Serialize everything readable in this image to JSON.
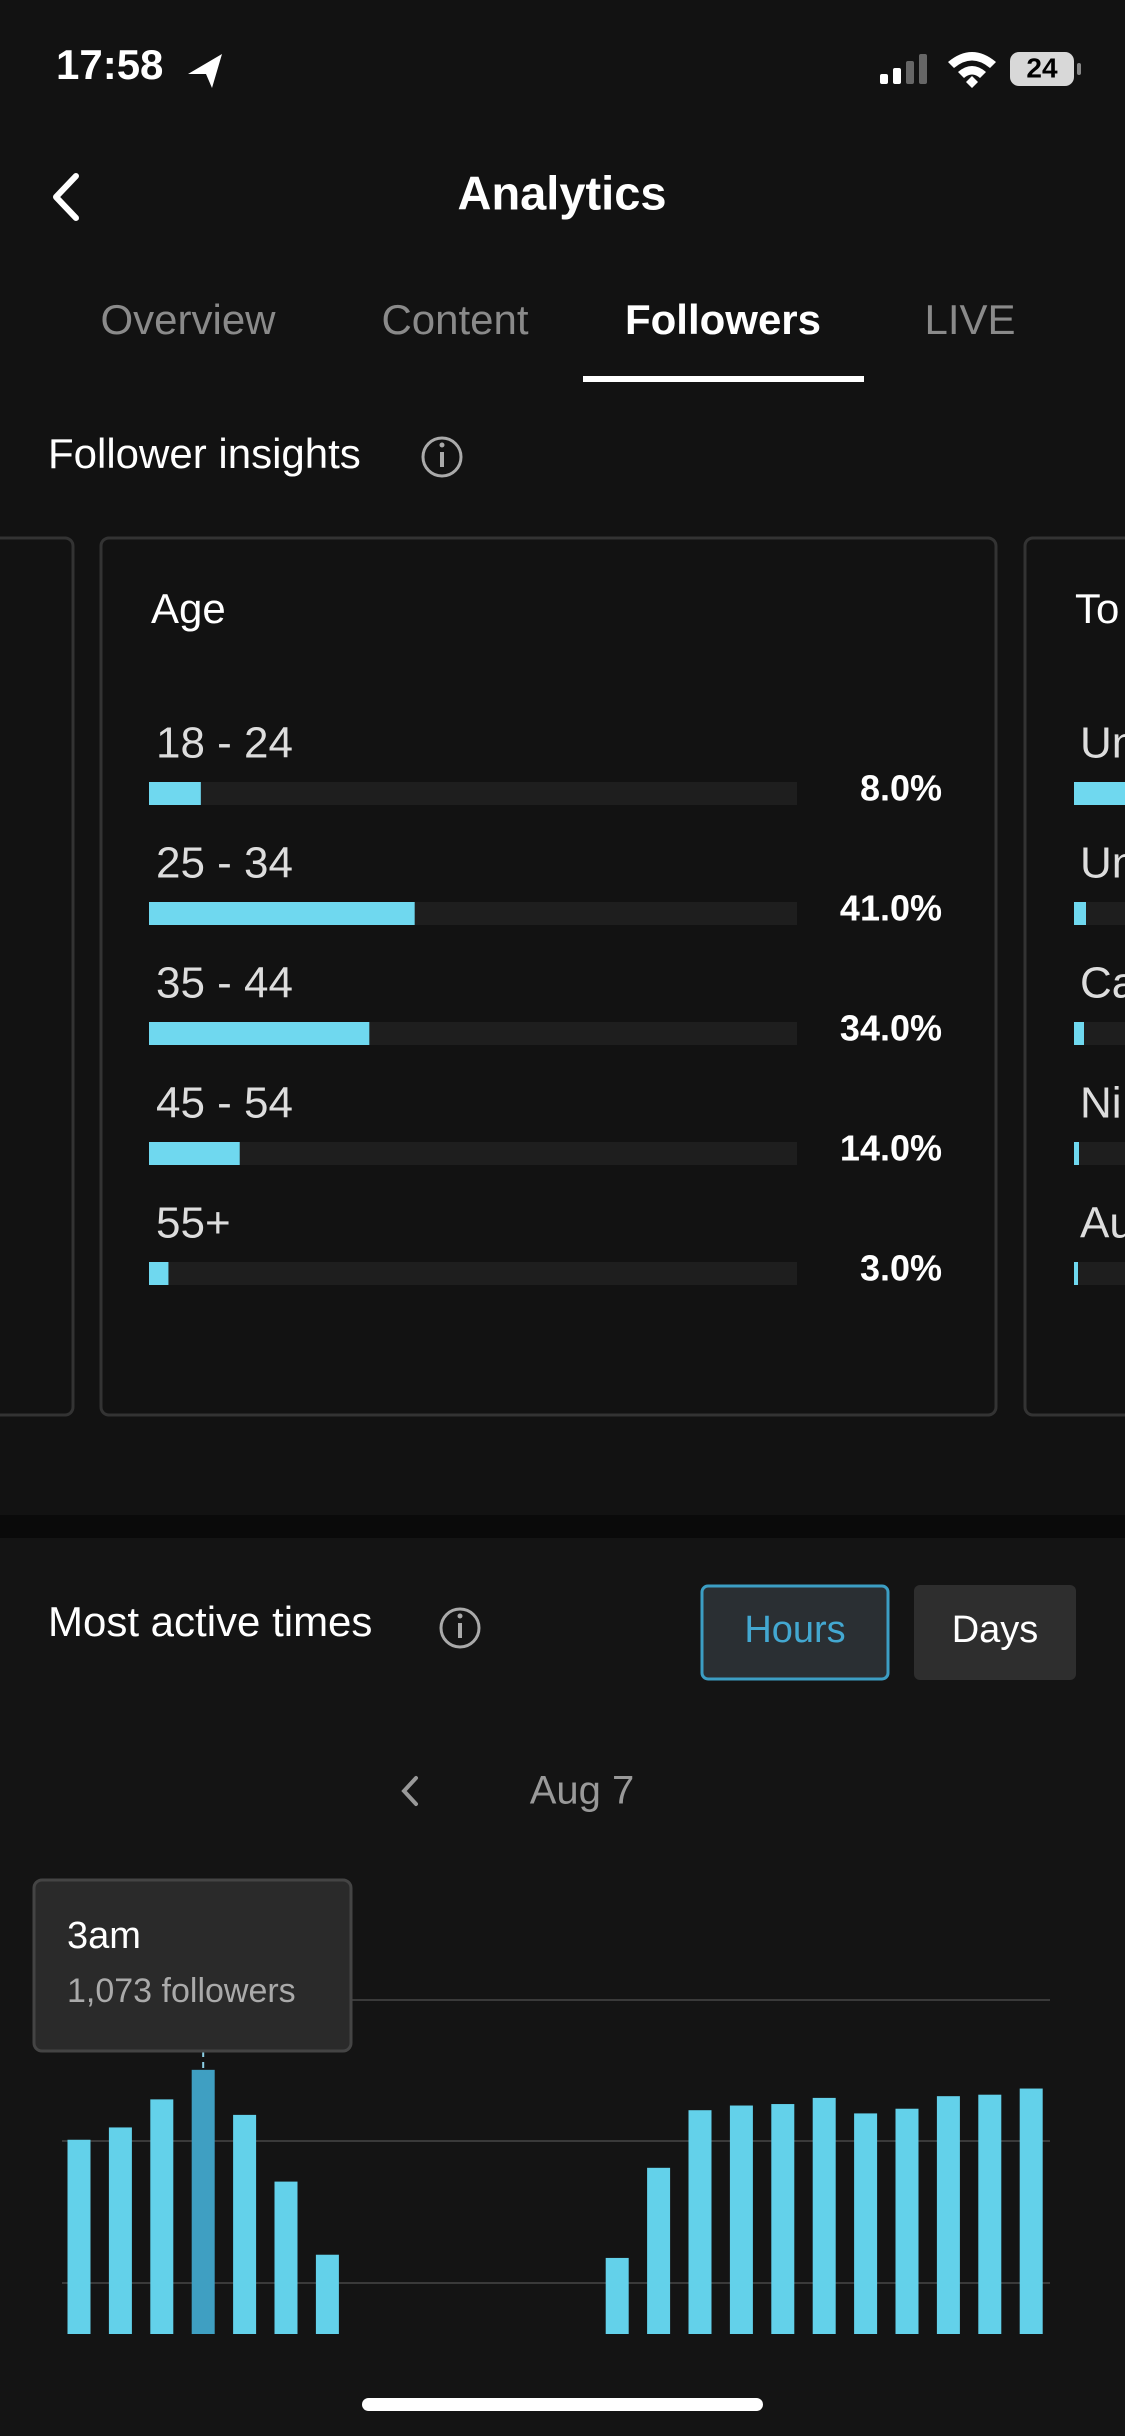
{
  "status_bar": {
    "time": "17:58",
    "battery": "24"
  },
  "header": {
    "title": "Analytics"
  },
  "tabs": [
    "Overview",
    "Content",
    "Followers",
    "LIVE"
  ],
  "follower_insights": {
    "title": "Follower insights",
    "age_chart": {
      "type": "bar",
      "title": "Age",
      "categories": [
        "18 - 24",
        "25 - 34",
        "35 - 44",
        "45 - 54",
        "55+"
      ],
      "values": [
        8.0,
        41.0,
        34.0,
        14.0,
        3.0
      ],
      "value_labels": [
        "8.0%",
        "41.0%",
        "34.0%",
        "14.0%",
        "3.0%"
      ],
      "color": "#6fd8ef"
    },
    "next_card": {
      "title": "To",
      "rows": [
        "Un",
        "Un",
        "Ca",
        "Ni",
        "Au"
      ]
    }
  },
  "active_times": {
    "title": "Most active times",
    "buttons": [
      "Hours",
      "Days"
    ],
    "date": "Aug 7",
    "chart": {
      "type": "bar",
      "values": [
        789,
        839,
        953,
        1073,
        890,
        619,
        322,
        null,
        null,
        null,
        null,
        null,
        null,
        309,
        675,
        909,
        928,
        934,
        959,
        896,
        915,
        966,
        972,
        997
      ],
      "color": "#63d1ea",
      "highlight_color": "#3f9fc2",
      "tooltip": {
        "label": "3am",
        "text": "1,073 followers",
        "index": 3
      }
    }
  }
}
